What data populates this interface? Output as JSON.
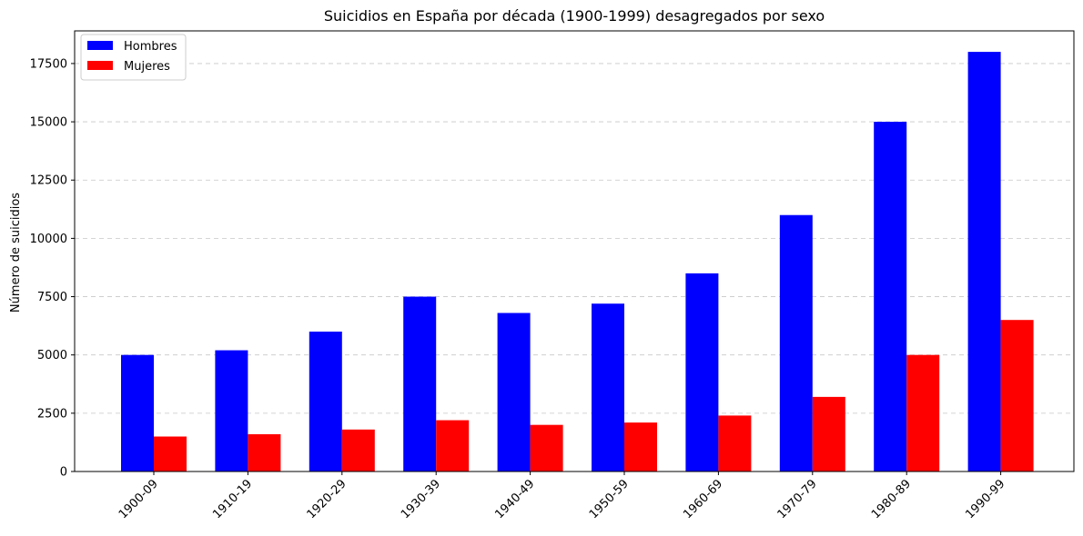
{
  "chart_data": {
    "type": "bar",
    "title": "Suicidios en España por década (1900-1999) desagregados por sexo",
    "xlabel": "",
    "ylabel": "Número de suicidios",
    "categories": [
      "1900-09",
      "1910-19",
      "1920-29",
      "1930-39",
      "1940-49",
      "1950-59",
      "1960-69",
      "1970-79",
      "1980-89",
      "1990-99"
    ],
    "series": [
      {
        "name": "Hombres",
        "color": "#0000ff",
        "values": [
          5000,
          5200,
          6000,
          7500,
          6800,
          7200,
          8500,
          11000,
          15000,
          18000
        ]
      },
      {
        "name": "Mujeres",
        "color": "#ff0000",
        "values": [
          1500,
          1600,
          1800,
          2200,
          2000,
          2100,
          2400,
          3200,
          5000,
          6500
        ]
      }
    ],
    "ylim": [
      0,
      18900
    ],
    "yticks": [
      0,
      2500,
      5000,
      7500,
      10000,
      12500,
      15000,
      17500
    ],
    "ytick_labels": [
      "0",
      "2500",
      "5000",
      "7500",
      "10000",
      "12500",
      "15000",
      "17500"
    ],
    "grid": "y-dashed",
    "legend_position": "top-left"
  }
}
